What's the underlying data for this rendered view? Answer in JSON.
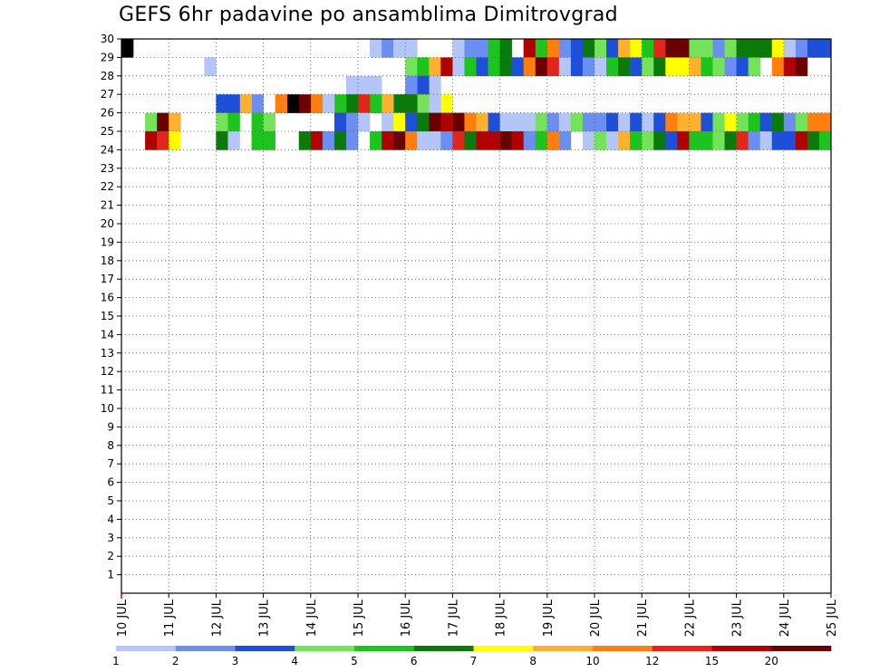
{
  "chart_data": {
    "type": "heatmap",
    "title": "GEFS 6hr padavine po ansamblima Dimitrovgrad",
    "x_ticks": [
      "10 JUL",
      "11 JUL",
      "12 JUL",
      "13 JUL",
      "14 JUL",
      "15 JUL",
      "16 JUL",
      "17 JUL",
      "18 JUL",
      "19 JUL",
      "20 JUL",
      "21 JUL",
      "22 JUL",
      "23 JUL",
      "24 JUL",
      "25 JUL"
    ],
    "y_ticks": [
      "1",
      "2",
      "3",
      "4",
      "5",
      "6",
      "7",
      "8",
      "9",
      "10",
      "11",
      "12",
      "13",
      "14",
      "15",
      "16",
      "17",
      "18",
      "19",
      "20",
      "21",
      "22",
      "23",
      "24",
      "25",
      "26",
      "27",
      "28",
      "29",
      "30"
    ],
    "xlim": [
      0,
      60
    ],
    "ylim": [
      0,
      30
    ],
    "x_unit": "6-hour step since 10 JUL",
    "grid": true,
    "colorbar": {
      "levels": [
        "1",
        "2",
        "3",
        "4",
        "5",
        "6",
        "7",
        "8",
        "10",
        "12",
        "15",
        "20"
      ],
      "colors": [
        "#b3c6f7",
        "#6b8ef0",
        "#1e4fd8",
        "#74e35a",
        "#1dc41d",
        "#0a7a0a",
        "#ffff00",
        "#ffb02e",
        "#ff7f0e",
        "#e3261b",
        "#b00000",
        "#6b0000"
      ]
    },
    "cells": [
      [
        1,
        30,
        12
      ],
      [
        22,
        30,
        0
      ],
      [
        23,
        30,
        1
      ],
      [
        24,
        30,
        0
      ],
      [
        25,
        30,
        0
      ],
      [
        29,
        30,
        0
      ],
      [
        30,
        30,
        1
      ],
      [
        31,
        30,
        1
      ],
      [
        32,
        30,
        4
      ],
      [
        33,
        30,
        5
      ],
      [
        35,
        30,
        10
      ],
      [
        36,
        30,
        4
      ],
      [
        37,
        30,
        8
      ],
      [
        38,
        30,
        1
      ],
      [
        39,
        30,
        2
      ],
      [
        40,
        30,
        5
      ],
      [
        41,
        30,
        3
      ],
      [
        42,
        30,
        2
      ],
      [
        43,
        30,
        7
      ],
      [
        44,
        30,
        6
      ],
      [
        45,
        30,
        4
      ],
      [
        46,
        30,
        9
      ],
      [
        47,
        30,
        11
      ],
      [
        48,
        30,
        11
      ],
      [
        49,
        30,
        3
      ],
      [
        50,
        30,
        3
      ],
      [
        51,
        30,
        1
      ],
      [
        52,
        30,
        3
      ],
      [
        53,
        30,
        5
      ],
      [
        54,
        30,
        5
      ],
      [
        55,
        30,
        5
      ],
      [
        56,
        30,
        6
      ],
      [
        57,
        30,
        0
      ],
      [
        58,
        30,
        1
      ],
      [
        59,
        30,
        2
      ],
      [
        60,
        30,
        2
      ],
      [
        8,
        29,
        0
      ],
      [
        25,
        29,
        3
      ],
      [
        26,
        29,
        4
      ],
      [
        27,
        29,
        7
      ],
      [
        28,
        29,
        10
      ],
      [
        29,
        29,
        0
      ],
      [
        30,
        29,
        4
      ],
      [
        31,
        29,
        2
      ],
      [
        32,
        29,
        4
      ],
      [
        33,
        29,
        5
      ],
      [
        34,
        29,
        2
      ],
      [
        35,
        29,
        8
      ],
      [
        36,
        29,
        11
      ],
      [
        37,
        29,
        9
      ],
      [
        38,
        29,
        0
      ],
      [
        39,
        29,
        2
      ],
      [
        40,
        29,
        1
      ],
      [
        41,
        29,
        0
      ],
      [
        42,
        29,
        4
      ],
      [
        43,
        29,
        5
      ],
      [
        44,
        29,
        2
      ],
      [
        45,
        29,
        3
      ],
      [
        46,
        29,
        5
      ],
      [
        47,
        29,
        6
      ],
      [
        48,
        29,
        6
      ],
      [
        49,
        29,
        7
      ],
      [
        50,
        29,
        4
      ],
      [
        51,
        29,
        3
      ],
      [
        52,
        29,
        1
      ],
      [
        53,
        29,
        2
      ],
      [
        54,
        29,
        3
      ],
      [
        56,
        29,
        8
      ],
      [
        57,
        29,
        10
      ],
      [
        58,
        29,
        11
      ],
      [
        27,
        28,
        0
      ],
      [
        26,
        28,
        2
      ],
      [
        25,
        28,
        1
      ],
      [
        20,
        28,
        0
      ],
      [
        21,
        28,
        0
      ],
      [
        22,
        28,
        0
      ],
      [
        28,
        27,
        6
      ],
      [
        27,
        27,
        0
      ],
      [
        26,
        27,
        3
      ],
      [
        25,
        27,
        5
      ],
      [
        24,
        27,
        5
      ],
      [
        23,
        27,
        7
      ],
      [
        22,
        27,
        4
      ],
      [
        21,
        27,
        9
      ],
      [
        20,
        27,
        5
      ],
      [
        19,
        27,
        4
      ],
      [
        18,
        27,
        0
      ],
      [
        17,
        27,
        8
      ],
      [
        16,
        27,
        11
      ],
      [
        15,
        27,
        12
      ],
      [
        14,
        27,
        8
      ],
      [
        12,
        27,
        1
      ],
      [
        11,
        27,
        7
      ],
      [
        10,
        27,
        2
      ],
      [
        9,
        27,
        2
      ],
      [
        3,
        26,
        3
      ],
      [
        4,
        26,
        11
      ],
      [
        5,
        26,
        7
      ],
      [
        9,
        26,
        3
      ],
      [
        10,
        26,
        4
      ],
      [
        12,
        26,
        4
      ],
      [
        13,
        26,
        3
      ],
      [
        19,
        26,
        2
      ],
      [
        20,
        26,
        1
      ],
      [
        21,
        26,
        0
      ],
      [
        23,
        26,
        0
      ],
      [
        24,
        26,
        6
      ],
      [
        25,
        26,
        2
      ],
      [
        26,
        26,
        5
      ],
      [
        27,
        26,
        11
      ],
      [
        28,
        26,
        10
      ],
      [
        29,
        26,
        11
      ],
      [
        30,
        26,
        8
      ],
      [
        31,
        26,
        7
      ],
      [
        32,
        26,
        2
      ],
      [
        33,
        26,
        0
      ],
      [
        34,
        26,
        0
      ],
      [
        35,
        26,
        0
      ],
      [
        36,
        26,
        3
      ],
      [
        37,
        26,
        1
      ],
      [
        38,
        26,
        0
      ],
      [
        39,
        26,
        3
      ],
      [
        40,
        26,
        1
      ],
      [
        41,
        26,
        1
      ],
      [
        42,
        26,
        2
      ],
      [
        43,
        26,
        0
      ],
      [
        44,
        26,
        2
      ],
      [
        45,
        26,
        0
      ],
      [
        46,
        26,
        2
      ],
      [
        47,
        26,
        8
      ],
      [
        48,
        26,
        7
      ],
      [
        49,
        26,
        7
      ],
      [
        50,
        26,
        2
      ],
      [
        51,
        26,
        3
      ],
      [
        52,
        26,
        6
      ],
      [
        53,
        26,
        3
      ],
      [
        54,
        26,
        4
      ],
      [
        55,
        26,
        2
      ],
      [
        56,
        26,
        5
      ],
      [
        57,
        26,
        1
      ],
      [
        58,
        26,
        3
      ],
      [
        59,
        26,
        8
      ],
      [
        60,
        26,
        8
      ],
      [
        3,
        25,
        10
      ],
      [
        4,
        25,
        9
      ],
      [
        5,
        25,
        6
      ],
      [
        9,
        25,
        5
      ],
      [
        10,
        25,
        0
      ],
      [
        12,
        25,
        4
      ],
      [
        13,
        25,
        4
      ],
      [
        16,
        25,
        5
      ],
      [
        17,
        25,
        10
      ],
      [
        18,
        25,
        1
      ],
      [
        19,
        25,
        5
      ],
      [
        20,
        25,
        1
      ],
      [
        22,
        25,
        4
      ],
      [
        23,
        25,
        10
      ],
      [
        24,
        25,
        11
      ],
      [
        25,
        25,
        8
      ],
      [
        26,
        25,
        0
      ],
      [
        27,
        25,
        0
      ],
      [
        28,
        25,
        1
      ],
      [
        29,
        25,
        9
      ],
      [
        30,
        25,
        5
      ],
      [
        31,
        25,
        10
      ],
      [
        32,
        25,
        10
      ],
      [
        33,
        25,
        11
      ],
      [
        34,
        25,
        10
      ],
      [
        35,
        25,
        1
      ],
      [
        36,
        25,
        4
      ],
      [
        37,
        25,
        8
      ],
      [
        38,
        25,
        1
      ],
      [
        40,
        25,
        0
      ],
      [
        41,
        25,
        3
      ],
      [
        42,
        25,
        0
      ],
      [
        43,
        25,
        7
      ],
      [
        44,
        25,
        4
      ],
      [
        45,
        25,
        3
      ],
      [
        46,
        25,
        5
      ],
      [
        47,
        25,
        2
      ],
      [
        48,
        25,
        10
      ],
      [
        49,
        25,
        4
      ],
      [
        50,
        25,
        4
      ],
      [
        51,
        25,
        3
      ],
      [
        52,
        25,
        5
      ],
      [
        53,
        25,
        9
      ],
      [
        54,
        25,
        1
      ],
      [
        55,
        25,
        0
      ],
      [
        56,
        25,
        2
      ],
      [
        57,
        25,
        2
      ],
      [
        58,
        25,
        10
      ],
      [
        59,
        25,
        5
      ],
      [
        60,
        25,
        4
      ]
    ]
  },
  "cells_source": "approximate"
}
